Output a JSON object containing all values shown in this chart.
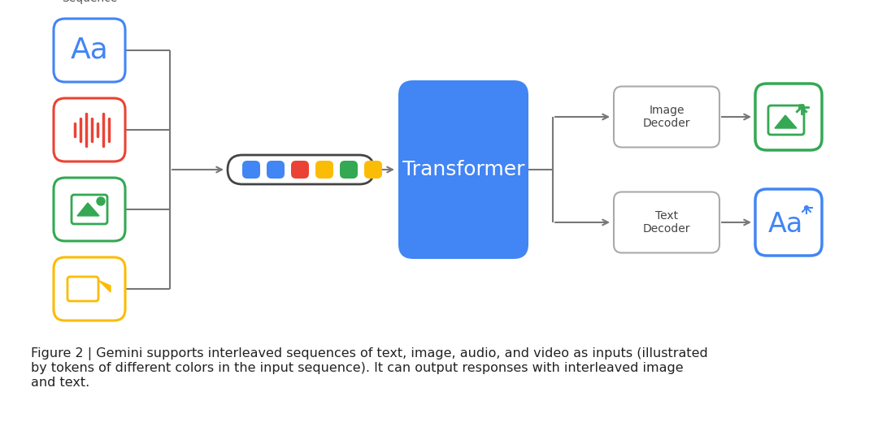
{
  "bg_color": "#ffffff",
  "fig_caption": "Figure 2 | Gemini supports interleaved sequences of text, image, audio, and video as inputs (illustrated\nby tokens of different colors in the input sequence). It can output responses with interleaved image\nand text.",
  "input_label": "Input\nSequence",
  "token_colors": [
    "#4285F4",
    "#4285F4",
    "#EA4335",
    "#FBBC05",
    "#34A853",
    "#FBBC05"
  ],
  "transformer_color": "#4285F4",
  "transformer_text": "Transformer",
  "blue": "#4285F4",
  "red": "#EA4335",
  "green": "#34A853",
  "yellow": "#FBBC05",
  "line_color": "#777777",
  "decoder_border": "#999999",
  "caption_bold": "Figure 2 |",
  "caption_normal": " Gemini supports interleaved sequences of text, image, audio, and video as inputs (illustrated\nby tokens of different colors in the input sequence). It can output responses with interleaved image\nand text."
}
